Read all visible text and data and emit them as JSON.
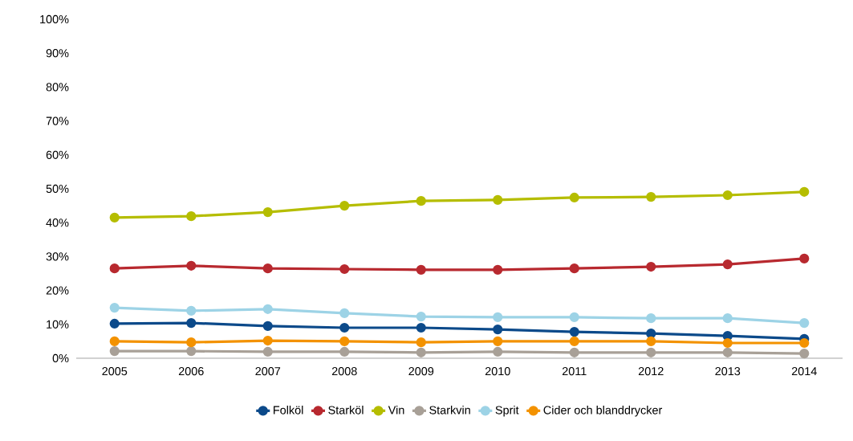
{
  "chart_data": {
    "type": "line",
    "categories": [
      "2005",
      "2006",
      "2007",
      "2008",
      "2009",
      "2010",
      "2011",
      "2012",
      "2013",
      "2014"
    ],
    "ylim": [
      0,
      100
    ],
    "yticks": [
      {
        "value": 0,
        "label": "0%"
      },
      {
        "value": 10,
        "label": "10%"
      },
      {
        "value": 20,
        "label": "20%"
      },
      {
        "value": 30,
        "label": "30%"
      },
      {
        "value": 40,
        "label": "40%"
      },
      {
        "value": 50,
        "label": "50%"
      },
      {
        "value": 60,
        "label": "60%"
      },
      {
        "value": 70,
        "label": "70%"
      },
      {
        "value": 80,
        "label": "80%"
      },
      {
        "value": 90,
        "label": "90%"
      },
      {
        "value": 100,
        "label": "100%"
      }
    ],
    "marker": "circle",
    "line_style": "solid",
    "legend": "bottom",
    "grid": false,
    "series": [
      {
        "name": "Folköl",
        "color": "#0c4a8a",
        "values": [
          10.2,
          10.4,
          9.5,
          9.0,
          9.0,
          8.5,
          7.8,
          7.3,
          6.6,
          5.7
        ]
      },
      {
        "name": "Starköl",
        "color": "#b8292f",
        "values": [
          26.5,
          27.3,
          26.5,
          26.3,
          26.1,
          26.1,
          26.5,
          27.0,
          27.7,
          29.4
        ]
      },
      {
        "name": "Vin",
        "color": "#b5bd00",
        "values": [
          41.5,
          41.9,
          43.1,
          45.0,
          46.4,
          46.7,
          47.4,
          47.6,
          48.1,
          49.1
        ]
      },
      {
        "name": "Starkvin",
        "color": "#a8a097",
        "values": [
          2.1,
          2.1,
          1.9,
          1.9,
          1.7,
          1.9,
          1.7,
          1.7,
          1.7,
          1.4
        ]
      },
      {
        "name": "Sprit",
        "color": "#9dd3e6",
        "values": [
          14.9,
          14.0,
          14.5,
          13.3,
          12.3,
          12.1,
          12.1,
          11.8,
          11.8,
          10.4
        ]
      },
      {
        "name": "Cider och blanddrycker",
        "color": "#f39200",
        "values": [
          5.0,
          4.7,
          5.2,
          5.0,
          4.7,
          5.0,
          5.0,
          5.0,
          4.5,
          4.5
        ]
      }
    ]
  }
}
